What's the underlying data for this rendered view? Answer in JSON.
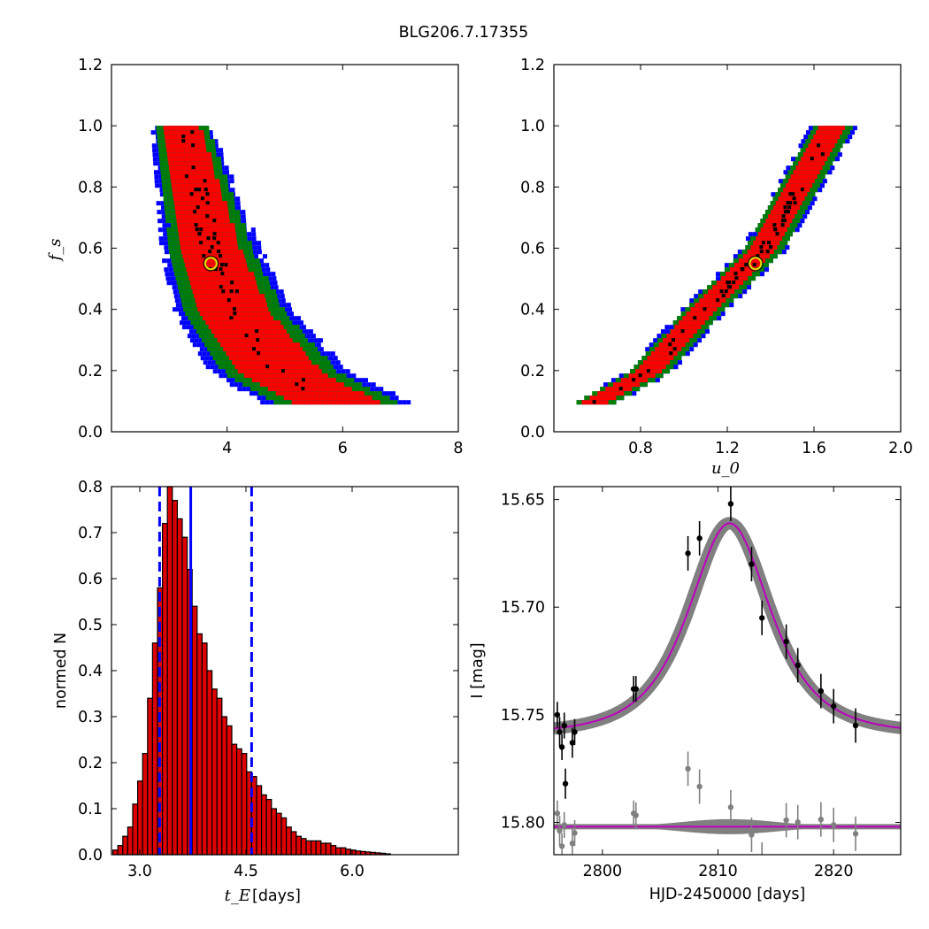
{
  "figure": {
    "title": "BLG206.7.17355"
  },
  "colors": {
    "ci_blue": "#0000ff",
    "ci_green": "#007f00",
    "ci_red": "#ff0000",
    "best": "#000000",
    "marker": "#dddd00",
    "hist_fill": "#dd0000",
    "model": "#bf00bf",
    "band": "#808080"
  },
  "chart_data": [
    {
      "type": "heatmap",
      "panel": "fs-vs-tE",
      "xlabel": "",
      "ylabel": "f_s",
      "xlim": [
        2.0,
        8.0
      ],
      "ylim": [
        0.0,
        1.2
      ],
      "xticks": [
        "4",
        "6",
        "8"
      ],
      "yticks": [
        "0.0",
        "0.2",
        "0.4",
        "0.6",
        "0.8",
        "1.0",
        "1.2"
      ],
      "layers": [
        "blue",
        "green",
        "red",
        "black"
      ],
      "ridge_centers": [
        {
          "fs": 1.0,
          "x": 3.2
        },
        {
          "fs": 0.8,
          "x": 3.45
        },
        {
          "fs": 0.6,
          "x": 3.7
        },
        {
          "fs": 0.4,
          "x": 4.1
        },
        {
          "fs": 0.2,
          "x": 4.9
        },
        {
          "fs": 0.1,
          "x": 5.9
        }
      ],
      "best_fit": {
        "x": 3.72,
        "y": 0.55
      }
    },
    {
      "type": "heatmap",
      "panel": "fs-vs-u0",
      "xlabel": "u_0",
      "ylabel": "",
      "xlim": [
        0.4,
        2.0
      ],
      "ylim": [
        0.0,
        1.2
      ],
      "xticks": [
        "0.8",
        "1.2",
        "1.6",
        "2.0"
      ],
      "yticks": [
        "0.0",
        "0.2",
        "0.4",
        "0.6",
        "0.8",
        "1.0",
        "1.2"
      ],
      "layers": [
        "blue",
        "green",
        "red",
        "black"
      ],
      "ridge_centers": [
        {
          "fs": 0.1,
          "x": 0.58
        },
        {
          "fs": 0.2,
          "x": 0.83
        },
        {
          "fs": 0.4,
          "x": 1.08
        },
        {
          "fs": 0.6,
          "x": 1.36
        },
        {
          "fs": 0.8,
          "x": 1.52
        },
        {
          "fs": 1.0,
          "x": 1.68
        }
      ],
      "best_fit": {
        "x": 1.33,
        "y": 0.55
      }
    },
    {
      "type": "bar",
      "panel": "tE-histogram",
      "xlabel": " [days]",
      "xlabel_symbol": "t_E",
      "ylabel": "normed N",
      "xlim": [
        2.6,
        7.5
      ],
      "ylim": [
        0.0,
        0.8
      ],
      "xticks": [
        "3.0",
        "4.5",
        "6.0"
      ],
      "yticks": [
        "0.0",
        "0.1",
        "0.2",
        "0.3",
        "0.4",
        "0.5",
        "0.6",
        "0.7",
        "0.8"
      ],
      "bin_width": 0.07,
      "bin_start": 2.62,
      "values": [
        0.01,
        0.02,
        0.04,
        0.06,
        0.11,
        0.16,
        0.22,
        0.34,
        0.46,
        0.58,
        0.72,
        0.8,
        0.77,
        0.73,
        0.69,
        0.62,
        0.54,
        0.48,
        0.46,
        0.4,
        0.36,
        0.34,
        0.3,
        0.28,
        0.24,
        0.23,
        0.22,
        0.18,
        0.17,
        0.15,
        0.13,
        0.12,
        0.1,
        0.09,
        0.08,
        0.06,
        0.05,
        0.04,
        0.035,
        0.03,
        0.03,
        0.03,
        0.025,
        0.025,
        0.02,
        0.015,
        0.015,
        0.012,
        0.01,
        0.008,
        0.007,
        0.006,
        0.005,
        0.004,
        0.003,
        0.002
      ],
      "median": 3.72,
      "lower": 3.28,
      "upper": 4.58
    },
    {
      "type": "scatter",
      "panel": "light-curve",
      "xlabel": "HJD-2450000 [days]",
      "ylabel": "I [mag]",
      "xlim": [
        2795.8,
        2825.8
      ],
      "ylim": [
        15.815,
        15.644
      ],
      "xticks": [
        "2800",
        "2810",
        "2820"
      ],
      "yticks": [
        "15.65",
        "15.70",
        "15.75",
        "15.80"
      ],
      "model": {
        "t0": 2811.0,
        "tE": 3.72,
        "u0": 1.33,
        "baseline": 15.759,
        "residual_level": 15.802
      },
      "data_x": [
        2796.1,
        2796.3,
        2796.5,
        2796.7,
        2796.8,
        2797.4,
        2797.6,
        2802.7,
        2802.9,
        2807.4,
        2808.4,
        2811.1,
        2812.9,
        2813.8,
        2815.9,
        2816.9,
        2818.9,
        2820.0,
        2821.9
      ],
      "data_y": [
        15.75,
        15.758,
        15.765,
        15.755,
        15.782,
        15.763,
        15.758,
        15.738,
        15.738,
        15.675,
        15.668,
        15.652,
        15.68,
        15.705,
        15.716,
        15.727,
        15.739,
        15.746,
        15.755
      ],
      "errors": [
        0.006,
        0.007,
        0.006,
        0.006,
        0.007,
        0.007,
        0.006,
        0.006,
        0.006,
        0.008,
        0.008,
        0.008,
        0.008,
        0.008,
        0.008,
        0.008,
        0.008,
        0.008,
        0.008
      ]
    }
  ]
}
